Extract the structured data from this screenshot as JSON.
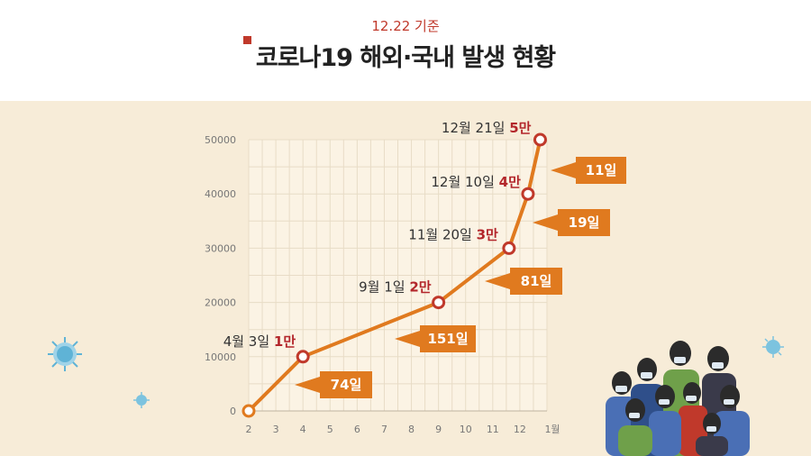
{
  "header": {
    "date": "12.22 기준",
    "title": "코로나19 해외·국내 발생 현황"
  },
  "colors": {
    "accent": "#c0392b",
    "line": "#e07a1f",
    "callout": "#e07a1f",
    "background": "#f7ecd8"
  },
  "chart_data": {
    "type": "line",
    "x_ticks": [
      "2",
      "3",
      "4",
      "5",
      "6",
      "7",
      "8",
      "9",
      "10",
      "11",
      "12",
      "1월"
    ],
    "y_ticks": [
      "0",
      "10000",
      "20000",
      "30000",
      "40000",
      "50000"
    ],
    "ylim": [
      0,
      50000
    ],
    "grid": true,
    "series": [
      {
        "x": [
          2,
          4,
          9,
          11.6,
          12.3,
          12.75
        ],
        "values": [
          0,
          10000,
          20000,
          30000,
          40000,
          50000
        ]
      }
    ],
    "point_labels": [
      {
        "date": "4월 3일",
        "value": "1만"
      },
      {
        "date": "9월 1일",
        "value": "2만"
      },
      {
        "date": "11월 20일",
        "value": "3만"
      },
      {
        "date": "12월 10일",
        "value": "4만"
      },
      {
        "date": "12월 21일",
        "value": "5만"
      }
    ],
    "durations": [
      "74일",
      "151일",
      "81일",
      "19일",
      "11일"
    ]
  },
  "icons": [
    "virus-icon",
    "virus-icon",
    "virus-icon",
    "crowd-illustration"
  ]
}
